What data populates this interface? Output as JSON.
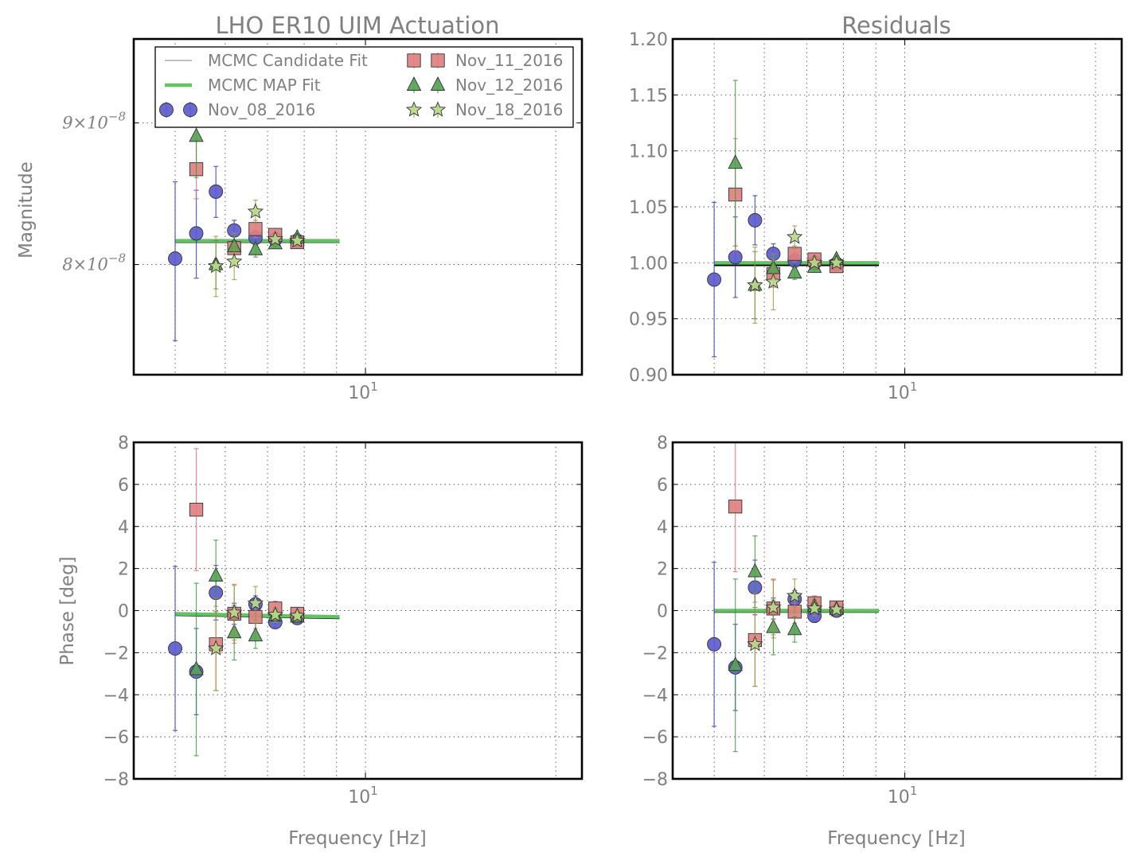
{
  "figure": {
    "title_left": "LHO ER10 UIM Actuation",
    "title_right": "Residuals"
  },
  "styles": {
    "Nov_08_2016": {
      "marker": "circle",
      "color": "#5c5ccd",
      "err_color": "#3333cc"
    },
    "Nov_11_2016": {
      "marker": "square",
      "color": "#e08080",
      "err_color": "#e07070"
    },
    "Nov_12_2016": {
      "marker": "triangle",
      "color": "#56a356",
      "err_color": "#3a9a3a"
    },
    "Nov_18_2016": {
      "marker": "star",
      "color": "#b9d98a",
      "err_color": "#9a9a3a"
    },
    "candidate_color": "#999999",
    "map_color": "#5cc85c",
    "black_line": "#000000"
  },
  "legend": [
    {
      "label": "MCMC Candidate Fit",
      "kind": "line-thin"
    },
    {
      "label": "MCMC MAP Fit",
      "kind": "line-thick"
    },
    {
      "label": "Nov_08_2016",
      "kind": "circle"
    },
    {
      "label": "Nov_11_2016",
      "kind": "square"
    },
    {
      "label": "Nov_12_2016",
      "kind": "triangle"
    },
    {
      "label": "Nov_18_2016",
      "kind": "star"
    }
  ],
  "chart_data": [
    {
      "id": "mag",
      "type": "scatter",
      "title": "LHO ER10 UIM Actuation",
      "xlabel": "",
      "ylabel": "Magnitude",
      "xscale": "log",
      "xlim": [
        4.3,
        22
      ],
      "yscale": "log",
      "ylim": [
        7.3e-08,
        9.65e-08
      ],
      "xticks": [
        {
          "v": 10,
          "label": "10",
          "sup": "1"
        }
      ],
      "yticks": [
        {
          "v": 8e-08,
          "label": "8×10",
          "sup": "−8"
        },
        {
          "v": 9e-08,
          "label": "9×10",
          "sup": "−8"
        }
      ],
      "grid": true,
      "fit": {
        "x": [
          5.0,
          9.1
        ],
        "map": [
          8.16e-08,
          8.16e-08
        ],
        "black": [
          8.16e-08,
          8.16e-08
        ]
      },
      "series": [
        {
          "name": "Nov_08_2016",
          "x": [
            5.0,
            5.4,
            5.8,
            6.2,
            6.7,
            7.2,
            7.8
          ],
          "y": [
            8.04e-08,
            8.21e-08,
            8.5e-08,
            8.23e-08,
            8.18e-08,
            8.17e-08,
            8.16e-08
          ],
          "err": [
            5.3e-09,
            3e-09,
            1.8e-09,
            7e-10,
            5e-10,
            3e-10,
            2e-10
          ]
        },
        {
          "name": "Nov_11_2016",
          "x": [
            5.4,
            6.2,
            6.7,
            7.2,
            7.8
          ],
          "y": [
            8.66e-08,
            8.11e-08,
            8.24e-08,
            8.2e-08,
            8.15e-08
          ],
          "err": [
            2.1e-09,
            1e-09,
            6e-10,
            3e-10,
            2e-10
          ]
        },
        {
          "name": "Nov_12_2016",
          "x": [
            5.4,
            5.8,
            6.2,
            6.7,
            7.2,
            7.8
          ],
          "y": [
            8.9e-08,
            8e-08,
            8.12e-08,
            8.1e-08,
            8.14e-08,
            8.18e-08
          ],
          "err": [
            3e-09,
            1.6e-09,
            8e-10,
            5e-10,
            3e-10,
            2e-10
          ]
        },
        {
          "name": "Nov_18_2016",
          "x": [
            5.8,
            6.2,
            6.7,
            7.2,
            7.8
          ],
          "y": [
            7.99e-08,
            8.02e-08,
            8.36e-08,
            8.17e-08,
            8.16e-08
          ],
          "err": [
            2e-09,
            1.2e-09,
            8e-10,
            4e-10,
            3e-10
          ]
        }
      ]
    },
    {
      "id": "magres",
      "type": "scatter",
      "title": "Residuals",
      "xlabel": "",
      "ylabel": "",
      "xscale": "log",
      "xlim": [
        4.3,
        22
      ],
      "yscale": "linear",
      "ylim": [
        0.9,
        1.2
      ],
      "xticks": [
        {
          "v": 10,
          "label": "10",
          "sup": "1"
        }
      ],
      "yticks": [
        {
          "v": 0.9,
          "label": "0.90"
        },
        {
          "v": 0.95,
          "label": "0.95"
        },
        {
          "v": 1.0,
          "label": "1.00"
        },
        {
          "v": 1.05,
          "label": "1.05"
        },
        {
          "v": 1.1,
          "label": "1.10"
        },
        {
          "v": 1.15,
          "label": "1.15"
        },
        {
          "v": 1.2,
          "label": "1.20"
        }
      ],
      "grid": true,
      "fit": {
        "x": [
          5.0,
          9.1
        ],
        "map": [
          1.0,
          1.0
        ],
        "black": [
          0.999,
          0.999
        ]
      },
      "series": [
        {
          "name": "Nov_08_2016",
          "x": [
            5.0,
            5.4,
            5.8,
            6.2,
            6.7,
            7.2,
            7.8
          ],
          "y": [
            0.985,
            1.005,
            1.038,
            1.008,
            1.002,
            1.0,
            0.999
          ],
          "err": [
            0.069,
            0.036,
            0.022,
            0.009,
            0.006,
            0.004,
            0.003
          ]
        },
        {
          "name": "Nov_11_2016",
          "x": [
            5.4,
            6.2,
            6.7,
            7.2,
            7.8
          ],
          "y": [
            1.061,
            0.99,
            1.008,
            1.003,
            0.997
          ],
          "err": [
            0.05,
            0.012,
            0.007,
            0.004,
            0.003
          ]
        },
        {
          "name": "Nov_12_2016",
          "x": [
            5.4,
            5.8,
            6.2,
            6.7,
            7.2,
            7.8
          ],
          "y": [
            1.089,
            0.98,
            0.995,
            0.991,
            0.996,
            1.003
          ],
          "err": [
            0.074,
            0.03,
            0.01,
            0.006,
            0.004,
            0.003
          ]
        },
        {
          "name": "Nov_18_2016",
          "x": [
            5.8,
            6.2,
            6.7,
            7.2,
            7.8
          ],
          "y": [
            0.98,
            0.983,
            1.023,
            1.0,
            1.0
          ],
          "err": [
            0.034,
            0.025,
            0.01,
            0.005,
            0.004
          ]
        }
      ]
    },
    {
      "id": "pha",
      "type": "scatter",
      "title": "",
      "xlabel": "Frequency [Hz]",
      "ylabel": "Phase [deg]",
      "xscale": "log",
      "xlim": [
        4.3,
        22
      ],
      "yscale": "linear",
      "ylim": [
        -8,
        8
      ],
      "xticks": [
        {
          "v": 10,
          "label": "10",
          "sup": "1"
        }
      ],
      "yticks": [
        {
          "v": -8,
          "label": "−8"
        },
        {
          "v": -6,
          "label": "−6"
        },
        {
          "v": -4,
          "label": "−4"
        },
        {
          "v": -2,
          "label": "−2"
        },
        {
          "v": 0,
          "label": "0"
        },
        {
          "v": 2,
          "label": "2"
        },
        {
          "v": 4,
          "label": "4"
        },
        {
          "v": 6,
          "label": "6"
        },
        {
          "v": 8,
          "label": "8"
        }
      ],
      "grid": true,
      "fit": {
        "x": [
          5.0,
          9.1
        ],
        "map": [
          -0.15,
          -0.3
        ],
        "black": [
          -0.15,
          -0.3
        ]
      },
      "series": [
        {
          "name": "Nov_08_2016",
          "x": [
            5.0,
            5.4,
            5.8,
            6.2,
            6.7,
            7.2,
            7.8
          ],
          "y": [
            -1.8,
            -2.9,
            0.85,
            -0.15,
            0.3,
            -0.55,
            -0.35
          ],
          "err": [
            3.9,
            2.05,
            1.3,
            0.5,
            0.4,
            0.25,
            0.2
          ]
        },
        {
          "name": "Nov_11_2016",
          "x": [
            5.4,
            5.8,
            6.2,
            6.7,
            7.2,
            7.8
          ],
          "y": [
            4.8,
            -1.6,
            -0.15,
            -0.3,
            0.1,
            -0.15
          ],
          "err": [
            2.9,
            2.2,
            1.4,
            0.55,
            0.35,
            0.25
          ]
        },
        {
          "name": "Nov_12_2016",
          "x": [
            5.4,
            5.8,
            6.2,
            6.7,
            7.2,
            7.8
          ],
          "y": [
            -2.8,
            1.65,
            -1.05,
            -1.2,
            -0.25,
            -0.3
          ],
          "err": [
            4.1,
            1.7,
            1.3,
            0.6,
            0.3,
            0.2
          ]
        },
        {
          "name": "Nov_18_2016",
          "x": [
            5.8,
            6.2,
            6.7,
            7.2,
            7.8
          ],
          "y": [
            -1.8,
            -0.1,
            0.35,
            -0.2,
            -0.25
          ],
          "err": [
            2.0,
            1.3,
            0.8,
            0.35,
            0.25
          ]
        }
      ]
    },
    {
      "id": "phares",
      "type": "scatter",
      "title": "",
      "xlabel": "Frequency [Hz]",
      "ylabel": "",
      "xscale": "log",
      "xlim": [
        4.3,
        22
      ],
      "yscale": "linear",
      "ylim": [
        -8,
        8
      ],
      "xticks": [
        {
          "v": 10,
          "label": "10",
          "sup": "1"
        }
      ],
      "yticks": [
        {
          "v": -8,
          "label": "−8"
        },
        {
          "v": -6,
          "label": "−6"
        },
        {
          "v": -4,
          "label": "−4"
        },
        {
          "v": -2,
          "label": "−2"
        },
        {
          "v": 0,
          "label": "0"
        },
        {
          "v": 2,
          "label": "2"
        },
        {
          "v": 4,
          "label": "4"
        },
        {
          "v": 6,
          "label": "6"
        },
        {
          "v": 8,
          "label": "8"
        }
      ],
      "grid": true,
      "fit": {
        "x": [
          5.0,
          9.1
        ],
        "map": [
          0.0,
          0.0
        ],
        "black": [
          0.0,
          0.0
        ]
      },
      "series": [
        {
          "name": "Nov_08_2016",
          "x": [
            5.0,
            5.4,
            5.8,
            6.2,
            6.7,
            7.2,
            7.8
          ],
          "y": [
            -1.6,
            -2.7,
            1.1,
            0.1,
            0.55,
            -0.25,
            0.0
          ],
          "err": [
            3.9,
            2.05,
            1.3,
            0.5,
            0.4,
            0.25,
            0.2
          ]
        },
        {
          "name": "Nov_11_2016",
          "x": [
            5.4,
            5.8,
            6.2,
            6.7,
            7.2,
            7.8
          ],
          "y": [
            4.95,
            -1.4,
            0.1,
            -0.05,
            0.35,
            0.15
          ],
          "err": [
            3.1,
            2.2,
            1.4,
            0.55,
            0.35,
            0.25
          ]
        },
        {
          "name": "Nov_12_2016",
          "x": [
            5.4,
            5.8,
            6.2,
            6.7,
            7.2,
            7.8
          ],
          "y": [
            -2.6,
            1.85,
            -0.8,
            -0.9,
            0.2,
            0.05
          ],
          "err": [
            4.1,
            1.7,
            1.3,
            0.6,
            0.3,
            0.2
          ]
        },
        {
          "name": "Nov_18_2016",
          "x": [
            5.8,
            6.2,
            6.7,
            7.2,
            7.8
          ],
          "y": [
            -1.6,
            0.15,
            0.7,
            0.1,
            0.05
          ],
          "err": [
            2.0,
            1.3,
            0.8,
            0.35,
            0.25
          ]
        }
      ]
    }
  ]
}
